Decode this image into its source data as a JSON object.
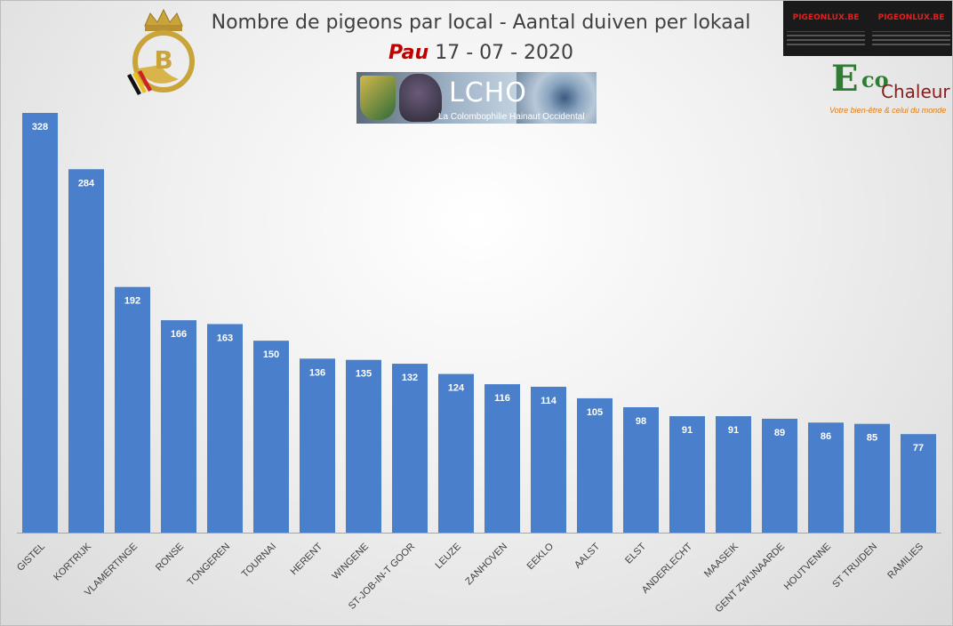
{
  "header": {
    "title": "Nombre de pigeons par local - Aantal duiven per lokaal",
    "race": "Pau",
    "date": "17 - 07 - 2020"
  },
  "logos": {
    "lcho_name": "LCHO",
    "lcho_subtitle": "La Colombophilie Hainaut Occidental",
    "pigeonlux": "PIGEONLUX.BE",
    "eco_e": "E",
    "eco_co": "co",
    "eco_chaleur": "Chaleur",
    "eco_tagline": "Votre bien-être & celui du monde",
    "crest_letter": "B"
  },
  "colors": {
    "bar": "#4a7fcb",
    "axis": "#a6a6a6",
    "race": "#c00000"
  },
  "chart_data": {
    "type": "bar",
    "categories": [
      "GISTEL",
      "KORTRIJK",
      "VLAMERTINGE",
      "RONSE",
      "TONGEREN",
      "TOURNAI",
      "HERENT",
      "WINGENE",
      "ST-JOB-IN-T GOOR",
      "LEUZE",
      "ZANHOVEN",
      "EEKLO",
      "AALST",
      "ELST",
      "ANDERLECHT",
      "MAASEIK",
      "GENT ZWIJNAARDE",
      "HOUTVENNE",
      "ST TRUIDEN",
      "RAMILIES"
    ],
    "values": [
      328,
      284,
      192,
      166,
      163,
      150,
      136,
      135,
      132,
      124,
      116,
      114,
      105,
      98,
      91,
      91,
      89,
      86,
      85,
      77
    ],
    "ylim": [
      0,
      340
    ],
    "grid": false,
    "legend": "none"
  }
}
